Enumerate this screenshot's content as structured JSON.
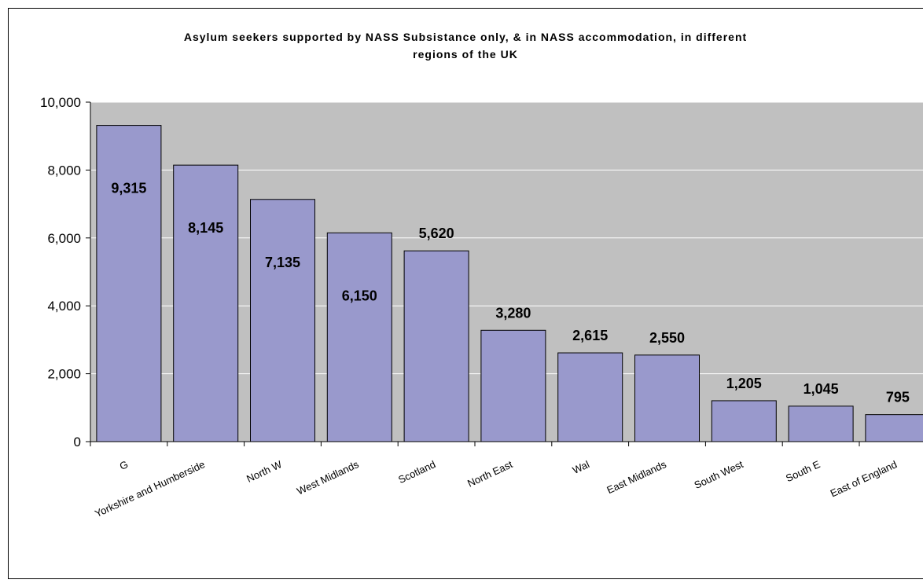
{
  "chart_data": {
    "type": "bar",
    "title": "Asylum seekers supported by NASS Subsistance only, & in NASS accommodation, in different regions of the UK",
    "categories": [
      "G",
      "Yorkshire and Humberside",
      "North W",
      "West Midlands",
      "Scotland",
      "North East",
      "Wal",
      "East Midlands",
      "South West",
      "South E",
      "East of England"
    ],
    "values": [
      9315,
      8145,
      7135,
      6150,
      5620,
      3280,
      2615,
      2550,
      1205,
      1045,
      795
    ],
    "value_labels": [
      "9,315",
      "8,145",
      "7,135",
      "6,150",
      "5,620",
      "3,280",
      "2,615",
      "2,550",
      "1,205",
      "1,045",
      "795"
    ],
    "color": "#9999cc",
    "ylim": [
      0,
      10000
    ],
    "yticks": [
      0,
      {
        "value": 2000,
        "label": "2,000"
      },
      {
        "value": 4000,
        "label": "4,000"
      },
      {
        "value": 6000,
        "label": "6,000"
      },
      {
        "value": 8000,
        "label": "8,000"
      },
      {
        "value": 10000,
        "label": "10,000"
      }
    ],
    "grid": true
  }
}
